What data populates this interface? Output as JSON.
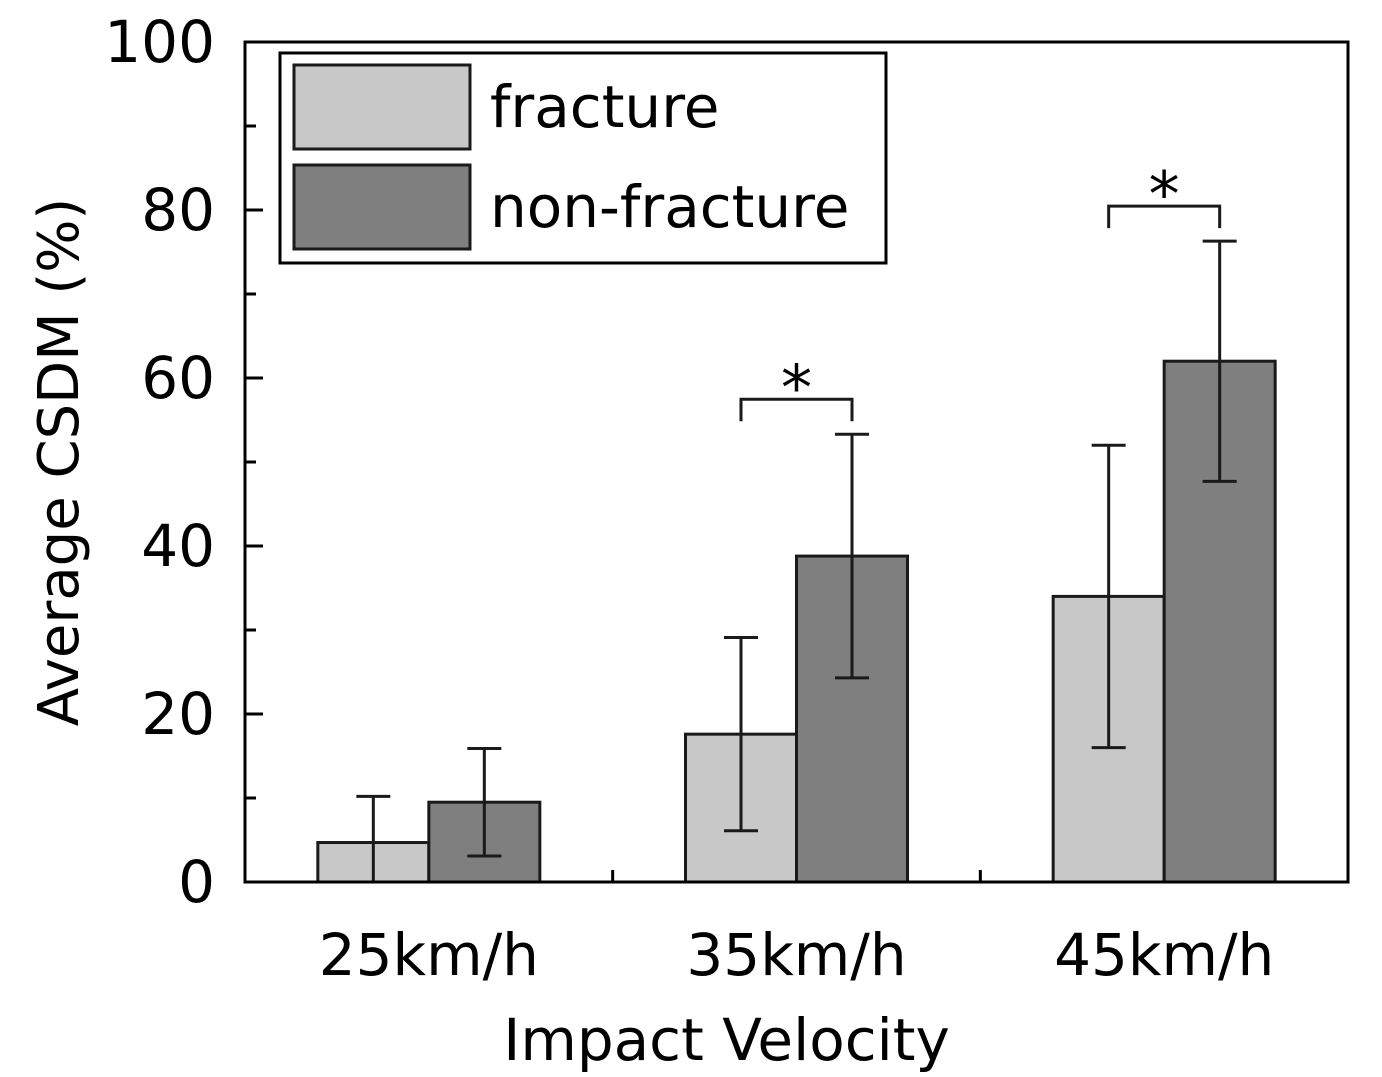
{
  "chart_data": {
    "type": "bar",
    "title": "",
    "xlabel": "Impact Velocity",
    "ylabel": "Average CSDM (%)",
    "ylim": [
      0,
      100
    ],
    "yticks": [
      0,
      20,
      40,
      60,
      80,
      100
    ],
    "categories": [
      "25km/h",
      "35km/h",
      "45km/h"
    ],
    "series": [
      {
        "name": "fracture",
        "color": "#c8c8c8",
        "values": [
          4.7,
          17.6,
          34.0
        ],
        "errors": [
          5.5,
          11.5,
          18.0
        ]
      },
      {
        "name": "non-fracture",
        "color": "#7f7f7f",
        "values": [
          9.5,
          38.8,
          62.0
        ],
        "errors": [
          6.4,
          14.5,
          14.3
        ]
      }
    ],
    "significance": [
      {
        "category": "25km/h",
        "label": ""
      },
      {
        "category": "35km/h",
        "label": "*"
      },
      {
        "category": "45km/h",
        "label": "*"
      }
    ],
    "legend_position": "top-left",
    "grid": false
  }
}
